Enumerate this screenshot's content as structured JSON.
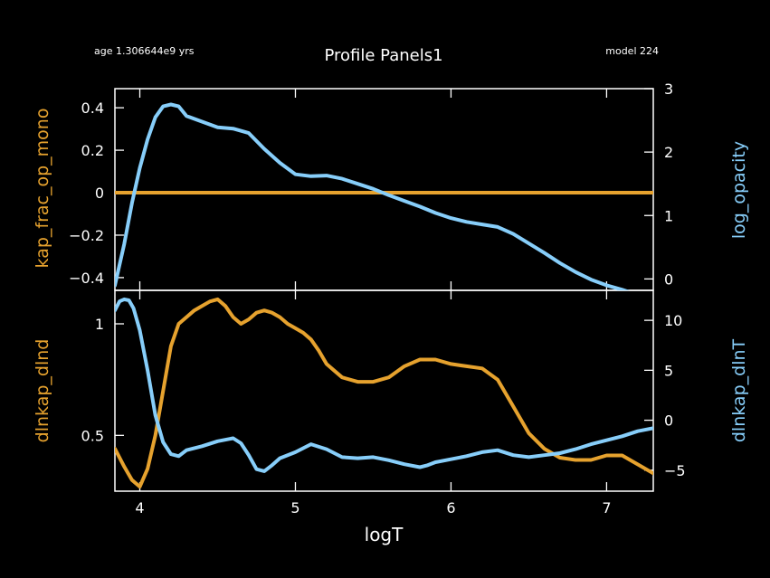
{
  "header": {
    "age": "age 1.306644e9 yrs",
    "title": "Profile Panels1",
    "model": "model 224"
  },
  "colors": {
    "background": "#000000",
    "foreground": "#ffffff",
    "orange": "#e6a22e",
    "blue": "#87cefa"
  },
  "chart_data": [
    {
      "type": "line",
      "xlabel": "logT",
      "xlim": [
        3.84,
        7.3
      ],
      "xticks": [
        4,
        5,
        6,
        7
      ],
      "left_axis": {
        "label": "kap_frac_op_mono",
        "ylim": [
          -0.46,
          0.49
        ],
        "ticks": [
          0.4,
          0.2,
          0,
          -0.2,
          -0.4
        ],
        "tick_labels": [
          "0.4",
          "0.2",
          "0",
          "−0.2",
          "−0.4"
        ]
      },
      "right_axis": {
        "label": "log_opacity",
        "ylim": [
          -0.18,
          3.0
        ],
        "ticks": [
          3,
          2,
          1,
          0
        ],
        "tick_labels": [
          "3",
          "2",
          "1",
          "0"
        ]
      },
      "series": [
        {
          "name": "kap_frac_op_mono",
          "axis": "left",
          "color": "#e6a22e",
          "x": [
            3.84,
            7.3
          ],
          "y": [
            0,
            0
          ]
        },
        {
          "name": "log_opacity",
          "axis": "right",
          "color": "#87cefa",
          "x": [
            3.84,
            3.9,
            3.95,
            4.0,
            4.05,
            4.1,
            4.15,
            4.2,
            4.25,
            4.3,
            4.4,
            4.5,
            4.6,
            4.7,
            4.8,
            4.9,
            5.0,
            5.1,
            5.2,
            5.3,
            5.4,
            5.5,
            5.6,
            5.7,
            5.8,
            5.9,
            6.0,
            6.1,
            6.2,
            6.3,
            6.4,
            6.5,
            6.6,
            6.7,
            6.8,
            6.9,
            7.0,
            7.1,
            7.2,
            7.3
          ],
          "y": [
            -0.1,
            0.55,
            1.2,
            1.75,
            2.2,
            2.55,
            2.72,
            2.75,
            2.72,
            2.57,
            2.48,
            2.39,
            2.37,
            2.3,
            2.05,
            1.83,
            1.65,
            1.62,
            1.63,
            1.58,
            1.5,
            1.42,
            1.32,
            1.23,
            1.14,
            1.04,
            0.96,
            0.9,
            0.86,
            0.82,
            0.71,
            0.56,
            0.41,
            0.25,
            0.11,
            -0.01,
            -0.1,
            -0.17,
            -0.25,
            -0.31
          ]
        }
      ]
    },
    {
      "type": "line",
      "xlabel": "logT",
      "xlim": [
        3.84,
        7.3
      ],
      "xticks": [
        4,
        5,
        6,
        7
      ],
      "xtick_labels": [
        "4",
        "5",
        "6",
        "7"
      ],
      "left_axis": {
        "label": "dlnkap_dlnd",
        "ylim": [
          0.25,
          1.15
        ],
        "ticks": [
          1,
          0.5
        ],
        "tick_labels": [
          "1",
          "0.5"
        ]
      },
      "right_axis": {
        "label": "dlnkap_dlnT",
        "ylim": [
          -7.1,
          13.0
        ],
        "ticks": [
          10,
          5,
          0,
          -5
        ],
        "tick_labels": [
          "10",
          "5",
          "0",
          "−5"
        ]
      },
      "series": [
        {
          "name": "dlnkap_dlnd",
          "axis": "left",
          "color": "#e6a22e",
          "x": [
            3.84,
            3.9,
            3.95,
            4.0,
            4.05,
            4.1,
            4.15,
            4.2,
            4.25,
            4.3,
            4.35,
            4.4,
            4.45,
            4.5,
            4.55,
            4.6,
            4.65,
            4.7,
            4.75,
            4.8,
            4.85,
            4.9,
            4.95,
            5.0,
            5.05,
            5.1,
            5.15,
            5.2,
            5.25,
            5.3,
            5.4,
            5.5,
            5.6,
            5.7,
            5.8,
            5.9,
            6.0,
            6.1,
            6.2,
            6.3,
            6.4,
            6.5,
            6.6,
            6.7,
            6.8,
            6.9,
            7.0,
            7.1,
            7.2,
            7.3
          ],
          "y": [
            0.44,
            0.36,
            0.3,
            0.27,
            0.35,
            0.5,
            0.7,
            0.9,
            1.0,
            1.03,
            1.06,
            1.08,
            1.1,
            1.11,
            1.08,
            1.03,
            1.0,
            1.02,
            1.05,
            1.06,
            1.05,
            1.03,
            1.0,
            0.98,
            0.96,
            0.93,
            0.88,
            0.82,
            0.79,
            0.76,
            0.74,
            0.74,
            0.76,
            0.81,
            0.84,
            0.84,
            0.82,
            0.81,
            0.8,
            0.75,
            0.63,
            0.51,
            0.44,
            0.4,
            0.39,
            0.39,
            0.41,
            0.41,
            0.37,
            0.33
          ]
        },
        {
          "name": "dlnkap_dlnT",
          "axis": "right",
          "color": "#87cefa",
          "x": [
            3.84,
            3.87,
            3.9,
            3.93,
            3.96,
            4.0,
            4.05,
            4.1,
            4.15,
            4.2,
            4.25,
            4.3,
            4.4,
            4.5,
            4.6,
            4.65,
            4.7,
            4.75,
            4.8,
            4.85,
            4.9,
            5.0,
            5.1,
            5.2,
            5.3,
            5.4,
            5.5,
            5.6,
            5.7,
            5.8,
            5.85,
            5.9,
            6.0,
            6.1,
            6.2,
            6.3,
            6.4,
            6.5,
            6.6,
            6.7,
            6.8,
            6.9,
            7.0,
            7.1,
            7.2,
            7.3
          ],
          "y": [
            11.0,
            11.9,
            12.1,
            12.0,
            11.2,
            9.0,
            5.0,
            0.5,
            -2.2,
            -3.4,
            -3.6,
            -3.0,
            -2.6,
            -2.1,
            -1.8,
            -2.3,
            -3.5,
            -4.9,
            -5.1,
            -4.5,
            -3.8,
            -3.2,
            -2.4,
            -2.9,
            -3.7,
            -3.8,
            -3.7,
            -4.0,
            -4.4,
            -4.7,
            -4.5,
            -4.2,
            -3.9,
            -3.6,
            -3.2,
            -3.0,
            -3.5,
            -3.7,
            -3.5,
            -3.3,
            -2.9,
            -2.4,
            -2.0,
            -1.6,
            -1.1,
            -0.8
          ]
        }
      ]
    }
  ]
}
